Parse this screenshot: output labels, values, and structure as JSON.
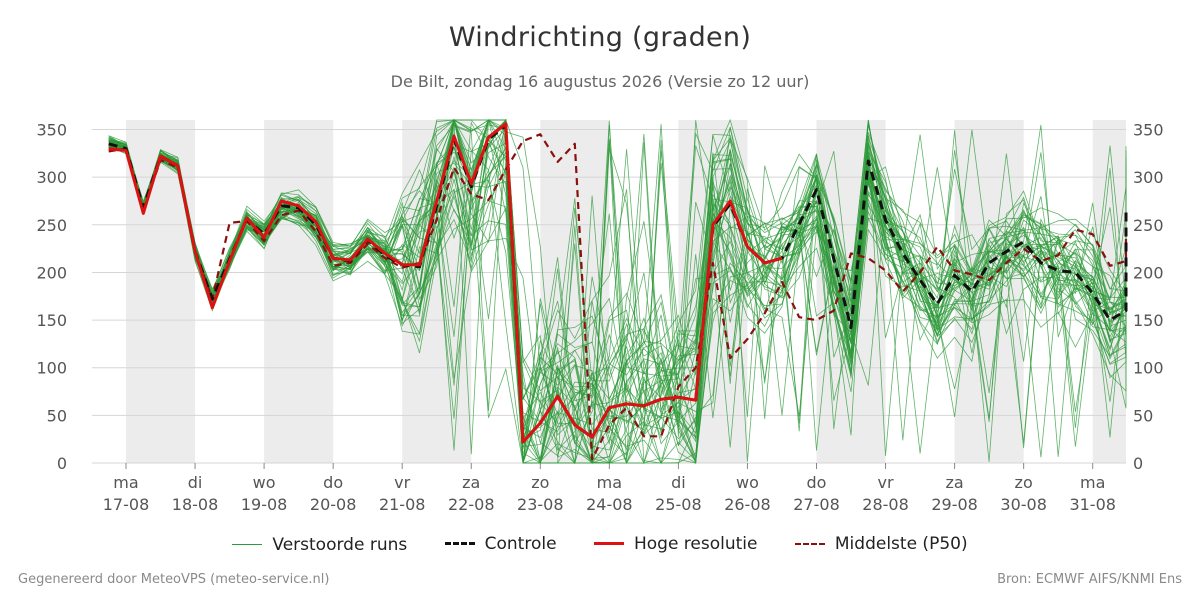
{
  "title": "Windrichting (graden)",
  "subtitle": "De Bilt, zondag 16 augustus 2026 (Versie zo 12 uur)",
  "footer_left": "Gegenereerd door MeteoVPS (meteo-service.nl)",
  "footer_right": "Bron: ECMWF AIFS/KNMI Ens",
  "chart_data": {
    "type": "line",
    "ylim": [
      0,
      360
    ],
    "y_ticks": [
      0,
      50,
      100,
      150,
      200,
      250,
      300,
      350
    ],
    "x_range_days": [
      0,
      14.5
    ],
    "x_ticks": [
      {
        "day": "ma",
        "date": "17-08"
      },
      {
        "day": "di",
        "date": "18-08"
      },
      {
        "day": "wo",
        "date": "19-08"
      },
      {
        "day": "do",
        "date": "20-08"
      },
      {
        "day": "vr",
        "date": "21-08"
      },
      {
        "day": "za",
        "date": "22-08"
      },
      {
        "day": "zo",
        "date": "23-08"
      },
      {
        "day": "ma",
        "date": "24-08"
      },
      {
        "day": "di",
        "date": "25-08"
      },
      {
        "day": "wo",
        "date": "26-08"
      },
      {
        "day": "do",
        "date": "27-08"
      },
      {
        "day": "vr",
        "date": "28-08"
      },
      {
        "day": "za",
        "date": "29-08"
      },
      {
        "day": "zo",
        "date": "30-08"
      },
      {
        "day": "ma",
        "date": "31-08"
      }
    ],
    "shaded_weekend_days": [
      0,
      2,
      4,
      6,
      8,
      10,
      12,
      14
    ],
    "grid": true,
    "legend_placement": "bottom",
    "series": [
      {
        "name": "Hoge resolutie",
        "color": "#dd1111",
        "style": "solid",
        "points": [
          [
            -0.25,
            330
          ],
          [
            0,
            328
          ],
          [
            0.25,
            262
          ],
          [
            0.5,
            322
          ],
          [
            0.75,
            312
          ],
          [
            1,
            222
          ],
          [
            1.25,
            163
          ],
          [
            1.5,
            212
          ],
          [
            1.75,
            257
          ],
          [
            2,
            237
          ],
          [
            2.25,
            275
          ],
          [
            2.5,
            270
          ],
          [
            2.75,
            253
          ],
          [
            3,
            215
          ],
          [
            3.25,
            213
          ],
          [
            3.5,
            235
          ],
          [
            3.75,
            220
          ],
          [
            4,
            208
          ],
          [
            4.25,
            208
          ],
          [
            4.5,
            275
          ],
          [
            4.75,
            343
          ],
          [
            5,
            293
          ],
          [
            5.25,
            342
          ],
          [
            5.5,
            356
          ],
          [
            5.75,
            22
          ],
          [
            6,
            42
          ],
          [
            6.25,
            70
          ],
          [
            6.5,
            40
          ],
          [
            6.75,
            27
          ],
          [
            7,
            58
          ],
          [
            7.25,
            62
          ],
          [
            7.5,
            60
          ],
          [
            7.75,
            67
          ],
          [
            8,
            69
          ],
          [
            8.25,
            66
          ],
          [
            8.5,
            250
          ],
          [
            8.75,
            275
          ],
          [
            9,
            227
          ],
          [
            9.25,
            210
          ],
          [
            9.5,
            215
          ]
        ]
      },
      {
        "name": "Controle",
        "color": "#111111",
        "style": "dashed",
        "points": [
          [
            -0.25,
            335
          ],
          [
            0,
            330
          ],
          [
            0.25,
            268
          ],
          [
            0.5,
            322
          ],
          [
            0.75,
            312
          ],
          [
            1,
            222
          ],
          [
            1.25,
            172
          ],
          [
            1.5,
            214
          ],
          [
            1.75,
            256
          ],
          [
            2,
            240
          ],
          [
            2.25,
            270
          ],
          [
            2.5,
            268
          ],
          [
            2.75,
            250
          ],
          [
            3,
            215
          ],
          [
            3.25,
            212
          ],
          [
            3.5,
            234
          ],
          [
            3.75,
            218
          ],
          [
            4,
            208
          ],
          [
            4.25,
            206
          ],
          [
            4.5,
            270
          ],
          [
            4.75,
            340
          ],
          [
            5,
            290
          ],
          [
            5.25,
            340
          ],
          [
            5.5,
            354
          ],
          [
            5.75,
            22
          ],
          [
            6,
            42
          ],
          [
            6.25,
            70
          ],
          [
            6.5,
            40
          ],
          [
            6.75,
            27
          ],
          [
            7,
            58
          ],
          [
            7.25,
            62
          ],
          [
            7.5,
            60
          ],
          [
            7.75,
            67
          ],
          [
            8,
            69
          ],
          [
            8.25,
            66
          ],
          [
            8.5,
            248
          ],
          [
            8.75,
            272
          ],
          [
            9,
            227
          ],
          [
            9.25,
            210
          ],
          [
            9.5,
            215
          ],
          [
            10,
            287
          ],
          [
            10.5,
            142
          ],
          [
            10.75,
            317
          ],
          [
            11,
            255
          ],
          [
            11.25,
            220
          ],
          [
            11.5,
            192
          ],
          [
            11.75,
            167
          ],
          [
            12,
            197
          ],
          [
            12.25,
            180
          ],
          [
            12.5,
            210
          ],
          [
            12.75,
            222
          ],
          [
            13,
            232
          ],
          [
            13.25,
            210
          ],
          [
            13.5,
            202
          ],
          [
            13.75,
            200
          ],
          [
            14,
            178
          ],
          [
            14.25,
            150
          ],
          [
            14.5,
            160
          ],
          [
            14.75,
            218
          ],
          [
            15,
            268
          ]
        ]
      },
      {
        "name": "Middelste (P50)",
        "color": "#8b1010",
        "style": "dashed",
        "points": [
          [
            -0.25,
            327
          ],
          [
            0,
            330
          ],
          [
            0.25,
            265
          ],
          [
            0.5,
            318
          ],
          [
            0.75,
            310
          ],
          [
            1,
            222
          ],
          [
            1.25,
            172
          ],
          [
            1.5,
            252
          ],
          [
            1.75,
            254
          ],
          [
            2,
            233
          ],
          [
            2.25,
            260
          ],
          [
            2.5,
            265
          ],
          [
            2.75,
            243
          ],
          [
            3,
            207
          ],
          [
            3.25,
            210
          ],
          [
            3.5,
            230
          ],
          [
            3.75,
            215
          ],
          [
            4,
            205
          ],
          [
            4.25,
            210
          ],
          [
            4.5,
            255
          ],
          [
            4.75,
            310
          ],
          [
            5,
            282
          ],
          [
            5.25,
            276
          ],
          [
            5.5,
            308
          ],
          [
            5.75,
            338
          ],
          [
            6,
            345
          ],
          [
            6.25,
            316
          ],
          [
            6.5,
            335
          ],
          [
            6.75,
            4
          ],
          [
            7,
            40
          ],
          [
            7.25,
            58
          ],
          [
            7.5,
            28
          ],
          [
            7.75,
            28
          ],
          [
            8,
            80
          ],
          [
            8.25,
            100
          ],
          [
            8.5,
            210
          ],
          [
            8.75,
            110
          ],
          [
            9,
            130
          ],
          [
            9.25,
            157
          ],
          [
            9.5,
            190
          ],
          [
            9.75,
            153
          ],
          [
            10,
            150
          ],
          [
            10.25,
            160
          ],
          [
            10.5,
            220
          ],
          [
            10.75,
            215
          ],
          [
            11,
            202
          ],
          [
            11.25,
            180
          ],
          [
            11.5,
            200
          ],
          [
            11.75,
            227
          ],
          [
            12,
            202
          ],
          [
            12.25,
            198
          ],
          [
            12.5,
            192
          ],
          [
            12.75,
            210
          ],
          [
            13,
            225
          ],
          [
            13.25,
            212
          ],
          [
            13.5,
            218
          ],
          [
            13.75,
            245
          ],
          [
            14,
            240
          ],
          [
            14.25,
            207
          ],
          [
            14.5,
            212
          ],
          [
            14.75,
            245
          ]
        ]
      }
    ],
    "ensemble": {
      "name": "Verstoorde runs",
      "color": "#2e9a3a",
      "style": "thin",
      "member_count": 50
    }
  },
  "legend": [
    {
      "key": "ens",
      "label": "Verstoorde runs"
    },
    {
      "key": "ctrl",
      "label": "Controle"
    },
    {
      "key": "hres",
      "label": "Hoge resolutie"
    },
    {
      "key": "p50",
      "label": "Middelste (P50)"
    }
  ]
}
